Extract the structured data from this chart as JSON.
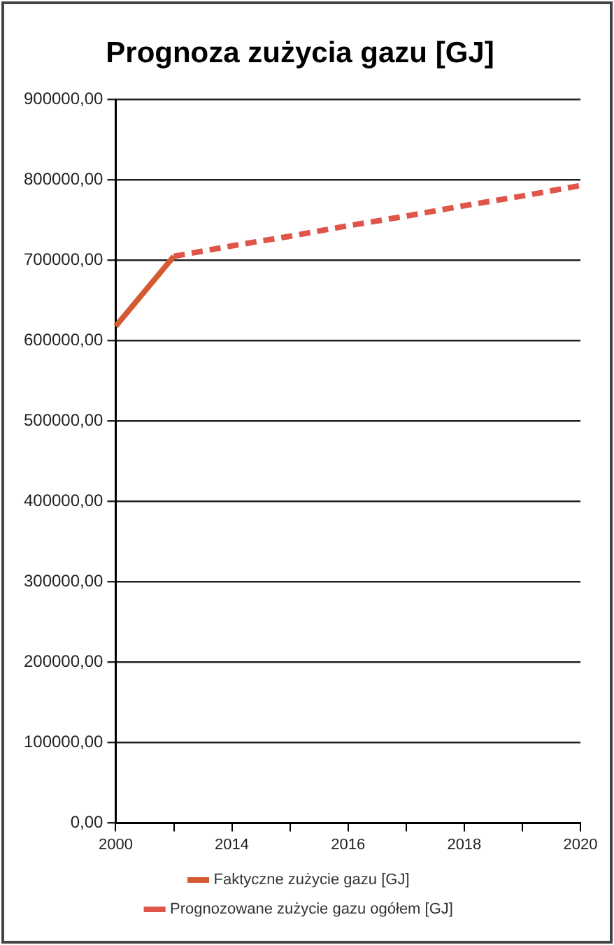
{
  "chart_data": {
    "type": "line",
    "title": "Prognoza zużycia gazu [GJ]",
    "categories": [
      "2000",
      null,
      "2014",
      null,
      "2016",
      null,
      "2018",
      null,
      "2020"
    ],
    "series": [
      {
        "name": "Faktyczne zużycie gazu [GJ]",
        "color": "#d45a32",
        "line_style": "solid",
        "values": [
          618000,
          705000,
          null,
          null,
          null,
          null,
          null,
          null,
          null
        ]
      },
      {
        "name": "Prognozowane zużycie gazu ogółem [GJ]",
        "color": "#e0554a",
        "line_style": "dashed",
        "values": [
          null,
          705000,
          718000,
          730000,
          743000,
          755000,
          768000,
          780000,
          793000
        ]
      }
    ],
    "ylim": [
      0,
      900000
    ],
    "yticks": [
      {
        "value": 0,
        "label": "0,00"
      },
      {
        "value": 100000,
        "label": "100000,00"
      },
      {
        "value": 200000,
        "label": "200000,00"
      },
      {
        "value": 300000,
        "label": "300000,00"
      },
      {
        "value": 400000,
        "label": "400000,00"
      },
      {
        "value": 500000,
        "label": "500000,00"
      },
      {
        "value": 600000,
        "label": "600000,00"
      },
      {
        "value": 700000,
        "label": "700000,00"
      },
      {
        "value": 800000,
        "label": "800000,00"
      },
      {
        "value": 900000,
        "label": "900000,00"
      }
    ],
    "grid": "y",
    "legend": "bottom",
    "marker": "none"
  }
}
